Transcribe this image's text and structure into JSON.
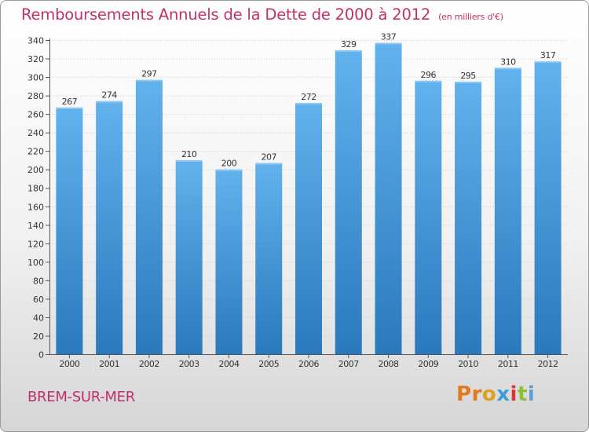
{
  "header": {
    "title": "Remboursements Annuels de la Dette de 2000 à 2012",
    "unit_note": "(en milliers d'€)"
  },
  "footer": {
    "city": "BREM-SUR-MER",
    "logo_text": "Proxiti"
  },
  "colors": {
    "title": "#c0306a",
    "bar_top": "#62b2ee",
    "bar_bottom": "#2a79bd",
    "logo_letters": [
      "#e07a1e",
      "#e07a1e",
      "#d8a21a",
      "#3f9ad8",
      "#d23a3a",
      "#8cbf3a",
      "#5aa0d8"
    ]
  },
  "chart_data": {
    "type": "bar",
    "title": "Remboursements Annuels de la Dette de 2000 à 2012",
    "subtitle": "(en milliers d'€)",
    "xlabel": "",
    "ylabel": "",
    "categories": [
      "2000",
      "2001",
      "2002",
      "2003",
      "2004",
      "2005",
      "2006",
      "2007",
      "2008",
      "2009",
      "2010",
      "2011",
      "2012"
    ],
    "values": [
      267,
      274,
      297,
      210,
      200,
      207,
      272,
      329,
      337,
      296,
      295,
      310,
      317
    ],
    "ylim": [
      0,
      340
    ],
    "yticks": [
      0,
      20,
      40,
      60,
      80,
      100,
      120,
      140,
      160,
      180,
      200,
      220,
      240,
      260,
      280,
      300,
      320,
      340
    ],
    "grid": true,
    "legend": "none"
  }
}
